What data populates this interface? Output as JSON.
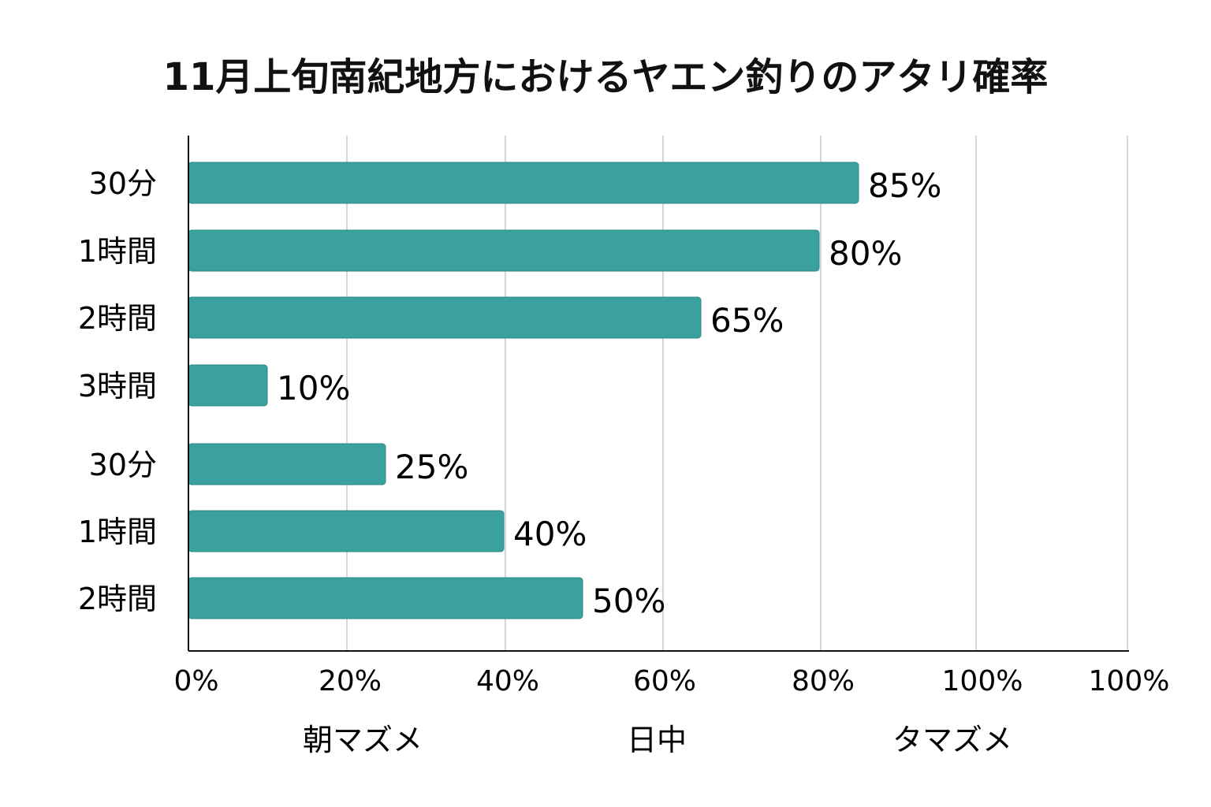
{
  "chart_data": {
    "type": "bar",
    "orientation": "horizontal",
    "title": "11月上旬南紀地方におけるヤエン釣りのアタリ確率",
    "categories": [
      "30分",
      "1時間",
      "2時間",
      "3時間",
      "30分",
      "1時間",
      "2時間"
    ],
    "values": [
      85,
      80,
      65,
      10,
      25,
      40,
      50
    ],
    "value_labels": [
      "85%",
      "80%",
      "65%",
      "10%",
      "25%",
      "40%",
      "50%"
    ],
    "x_tick_labels": [
      "0%",
      "20%",
      "40%",
      "60%",
      "80%",
      "100%",
      "100%"
    ],
    "group_labels": [
      "朝マズメ",
      "日中",
      "タマズメ"
    ],
    "grid": "vertical",
    "bar_color": "#3aa19e",
    "xlabel": "",
    "ylabel": ""
  }
}
